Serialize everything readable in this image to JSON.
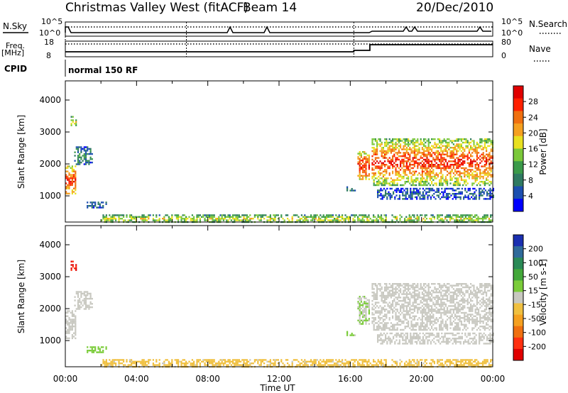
{
  "header": {
    "station": "Christmas Valley West (fitACF)",
    "beam": "Beam 14",
    "date": "20/Dec/2010"
  },
  "status_panel": {
    "nsky_label": "N.Sky",
    "nsky_ticks": [
      "10^5",
      "10^0"
    ],
    "nsearch_label": "N.Search",
    "nsearch_ticks": [
      "10^5",
      "10^0"
    ],
    "freq_label": "Freq.",
    "freq_unit": "[MHz]",
    "freq_ticks": [
      "18",
      "8"
    ],
    "nave_label": "Nave",
    "nave_ticks": [
      "80",
      "0"
    ],
    "cpid_label": "CPID",
    "cpid_value": "normal 150 RF"
  },
  "colors": {
    "power_scale": [
      "#0000ff",
      "#1c4fb0",
      "#2f7a62",
      "#3b9a4a",
      "#7bc83a",
      "#e8e020",
      "#f5a020",
      "#f07010",
      "#ff2000",
      "#e00000"
    ],
    "velocity_scale": [
      "#1a2fb0",
      "#2f6a9a",
      "#2a8a56",
      "#43a83a",
      "#7bcc3a",
      "#c8c8c0",
      "#f0c040",
      "#f5a020",
      "#f07010",
      "#ff3010",
      "#e00000"
    ],
    "ground_scatter": "#c8c8c0"
  },
  "chart_data": [
    {
      "type": "heatmap",
      "name": "Power",
      "xlabel": "Time UT",
      "ylabel": "Slant Range [km]",
      "xlim_hours": [
        0,
        24
      ],
      "ylim_km": [
        180,
        4600
      ],
      "yticks": [
        "1000",
        "2000",
        "3000",
        "4000"
      ],
      "colorbar": {
        "label": "Power [dB]",
        "ticks": [
          "4",
          "8",
          "12",
          "16",
          "20",
          "24",
          "28"
        ],
        "range": [
          0,
          32
        ]
      },
      "regions": [
        {
          "t0": 0.0,
          "t1": 0.6,
          "r0": 1050,
          "r1": 1950,
          "level": 0.55,
          "core": 0.85
        },
        {
          "t0": 0.3,
          "t1": 0.6,
          "r0": 3200,
          "r1": 3500,
          "level": 0.35,
          "core": 0.5
        },
        {
          "t0": 0.5,
          "t1": 1.5,
          "r0": 2000,
          "r1": 2550,
          "level": 0.15,
          "core": 0.3
        },
        {
          "t0": 1.2,
          "t1": 2.3,
          "r0": 620,
          "r1": 820,
          "level": 0.12,
          "core": 0.2
        },
        {
          "t0": 2.0,
          "t1": 24.0,
          "r0": 180,
          "r1": 420,
          "level": 0.3,
          "core": 0.55
        },
        {
          "t0": 15.7,
          "t1": 16.4,
          "r0": 1150,
          "r1": 1300,
          "level": 0.2,
          "core": 0.3
        },
        {
          "t0": 16.4,
          "t1": 17.1,
          "r0": 1500,
          "r1": 2400,
          "level": 0.5,
          "core": 0.9
        },
        {
          "t0": 17.2,
          "t1": 24.0,
          "r0": 1350,
          "r1": 2800,
          "level": 0.4,
          "core": 0.9
        },
        {
          "t0": 17.5,
          "t1": 24.0,
          "r0": 900,
          "r1": 1250,
          "level": 0.1,
          "core": 0.2
        }
      ]
    },
    {
      "type": "heatmap",
      "name": "Velocity",
      "xlabel": "Time UT",
      "ylabel": "Slant Range [km]",
      "xlim_hours": [
        0,
        24
      ],
      "xticks": [
        "00:00",
        "04:00",
        "08:00",
        "12:00",
        "16:00",
        "20:00",
        "00:00"
      ],
      "ylim_km": [
        180,
        4600
      ],
      "yticks": [
        "1000",
        "2000",
        "3000",
        "4000"
      ],
      "colorbar": {
        "label": "Velocity [m s-1]",
        "ticks": [
          "200",
          "100",
          "50",
          "15",
          "-15",
          "-50",
          "-100",
          "-200"
        ],
        "range": [
          -250,
          250
        ]
      },
      "regions": [
        {
          "t0": 0.0,
          "t1": 0.6,
          "r0": 1050,
          "r1": 1950,
          "velocity": 0
        },
        {
          "t0": 0.3,
          "t1": 0.6,
          "r0": 3200,
          "r1": 3500,
          "velocity": -220
        },
        {
          "t0": 0.5,
          "t1": 1.5,
          "r0": 2000,
          "r1": 2550,
          "velocity": 0
        },
        {
          "t0": 1.2,
          "t1": 2.3,
          "r0": 620,
          "r1": 820,
          "velocity": 40
        },
        {
          "t0": 2.0,
          "t1": 24.0,
          "r0": 180,
          "r1": 420,
          "velocity": -40
        },
        {
          "t0": 15.7,
          "t1": 16.4,
          "r0": 1150,
          "r1": 1300,
          "velocity": 40
        },
        {
          "t0": 16.4,
          "t1": 17.1,
          "r0": 1500,
          "r1": 2400,
          "velocity": 20
        },
        {
          "t0": 17.2,
          "t1": 24.0,
          "r0": 1350,
          "r1": 2800,
          "velocity": 0
        },
        {
          "t0": 17.5,
          "t1": 24.0,
          "r0": 900,
          "r1": 1250,
          "velocity": 0
        }
      ]
    }
  ]
}
